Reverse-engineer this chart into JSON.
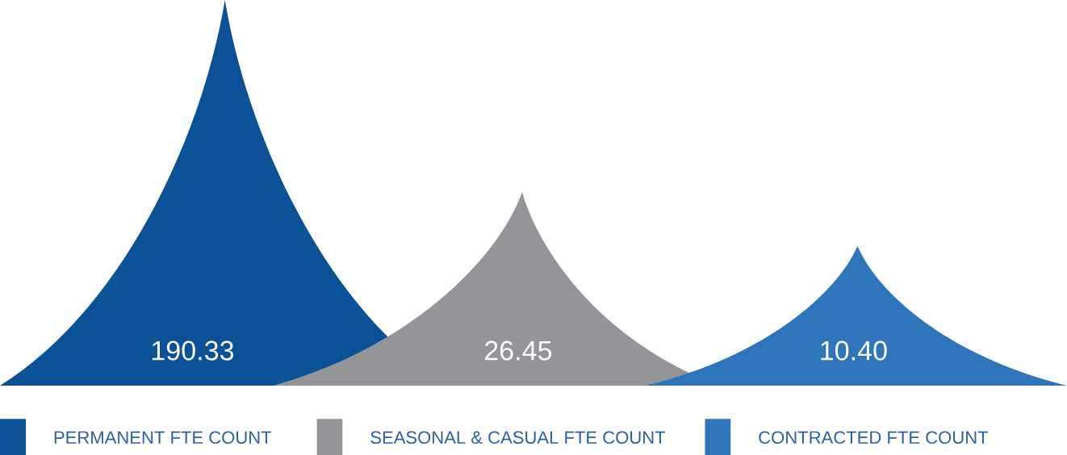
{
  "chart_data": {
    "type": "other",
    "categories": [
      "PERMANENT FTE COUNT",
      "SEASONAL & CASUAL FTE COUNT",
      "CONTRACTED FTE COUNT"
    ],
    "values": [
      190.33,
      26.45,
      10.4
    ],
    "value_labels": [
      "190.33",
      "26.45",
      "10.40"
    ],
    "colors": [
      "#0b5198",
      "#949598",
      "#2e75bc"
    ]
  }
}
